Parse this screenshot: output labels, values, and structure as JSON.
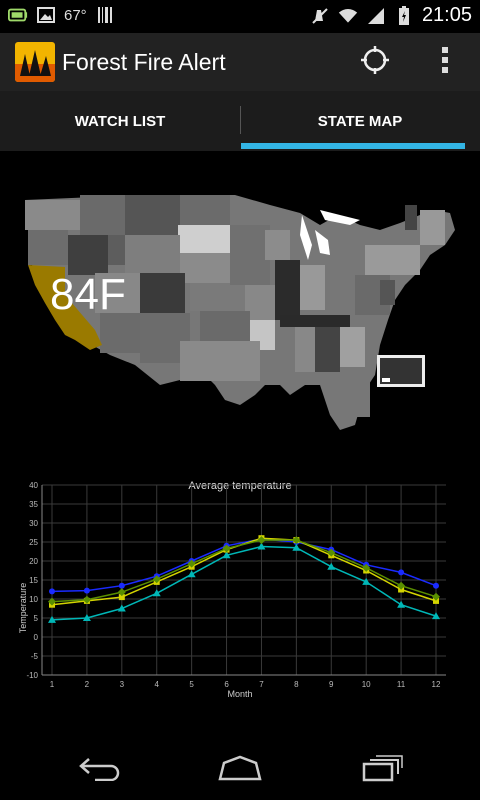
{
  "status_bar": {
    "temperature": "67°",
    "time": "21:05",
    "icons": [
      "battery-saver-icon",
      "image-icon",
      "barcode-icon",
      "mute-icon",
      "wifi-icon",
      "signal-icon",
      "battery-icon"
    ]
  },
  "action_bar": {
    "title": "Forest Fire Alert",
    "icons": [
      "app-logo-icon",
      "locate-icon",
      "overflow-menu-icon"
    ]
  },
  "tabs": [
    {
      "label": "WATCH LIST",
      "selected": false
    },
    {
      "label": "STATE MAP",
      "selected": true
    }
  ],
  "state_map": {
    "highlighted_state": "California",
    "highlight_color": "#9a7a00",
    "temperature_label": "84F"
  },
  "chart_data": {
    "type": "line",
    "title": "Average temperature",
    "xlabel": "Month",
    "ylabel": "Temperature",
    "x": [
      1,
      2,
      3,
      4,
      5,
      6,
      7,
      8,
      9,
      10,
      11,
      12
    ],
    "ylim": [
      -10,
      40
    ],
    "yticks": [
      -10,
      -5,
      0,
      5,
      10,
      15,
      20,
      25,
      30,
      35,
      40
    ],
    "grid": true,
    "series": [
      {
        "color": "#1a2bff",
        "marker": "circle",
        "values": [
          12,
          12.2,
          13.5,
          16,
          20,
          24,
          25.8,
          25,
          23,
          19,
          17,
          13.5
        ]
      },
      {
        "color": "#00b7b7",
        "marker": "triangle",
        "values": [
          4.5,
          5,
          7.5,
          11.5,
          16.5,
          21.5,
          23.8,
          23.5,
          18.5,
          14.5,
          8.5,
          5.5
        ]
      },
      {
        "color": "#d4d400",
        "marker": "square",
        "values": [
          8.5,
          9.5,
          10.5,
          14.5,
          18.5,
          23,
          26,
          25.5,
          21.5,
          17.5,
          12.5,
          9.5
        ]
      },
      {
        "color": "#5a8f00",
        "marker": "diamond",
        "values": [
          9.3,
          9.8,
          11.8,
          15.2,
          19.3,
          23.3,
          25.5,
          25.5,
          22.2,
          18.2,
          13.5,
          10.6
        ]
      }
    ]
  },
  "nav_bar": {
    "icons": [
      "back-icon",
      "home-icon",
      "recent-apps-icon"
    ]
  }
}
